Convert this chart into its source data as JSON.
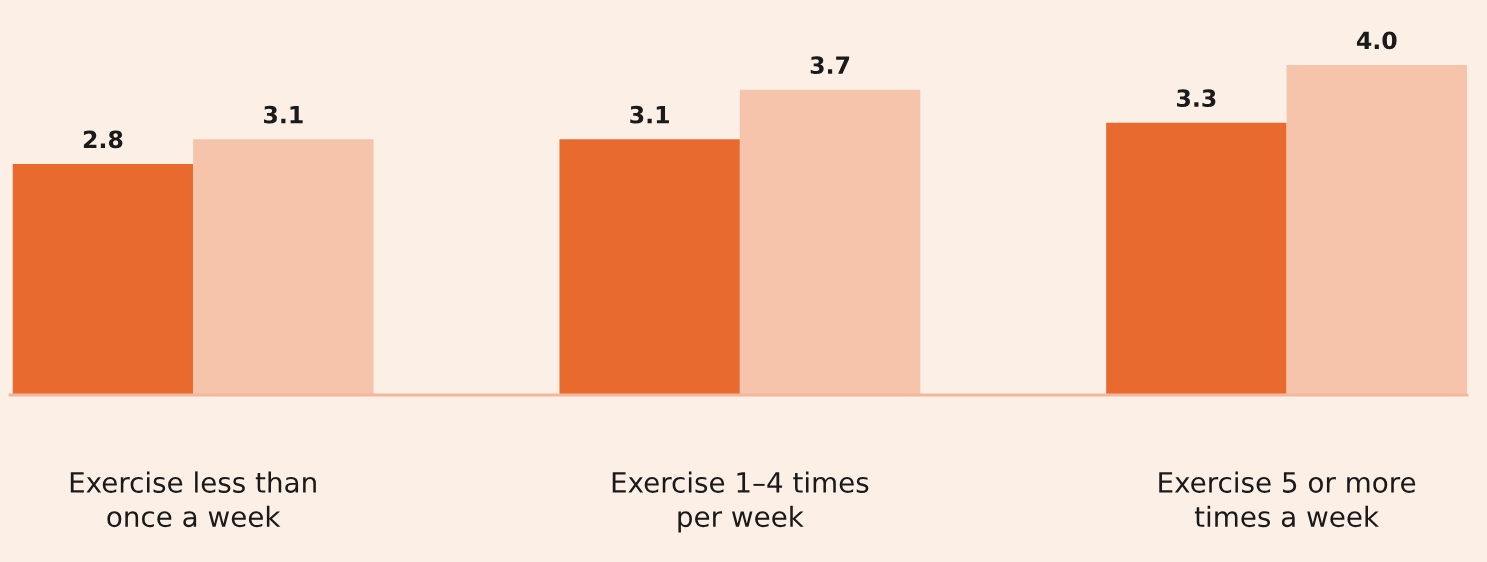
{
  "chart_data": {
    "type": "bar",
    "categories": [
      "Exercise less than\nonce a week",
      "Exercise 1–4 times\nper week",
      "Exercise 5 or more\ntimes a week"
    ],
    "series": [
      {
        "color": "#e96a2e",
        "values": [
          2.8,
          3.1,
          3.3
        ],
        "value_labels": [
          "2.8",
          "3.1",
          "3.3"
        ]
      },
      {
        "color": "#f5c4aa",
        "values": [
          3.1,
          3.7,
          4.0
        ],
        "value_labels": [
          "3.1",
          "3.7",
          "4.0"
        ]
      }
    ],
    "grid": false,
    "legend": false
  }
}
